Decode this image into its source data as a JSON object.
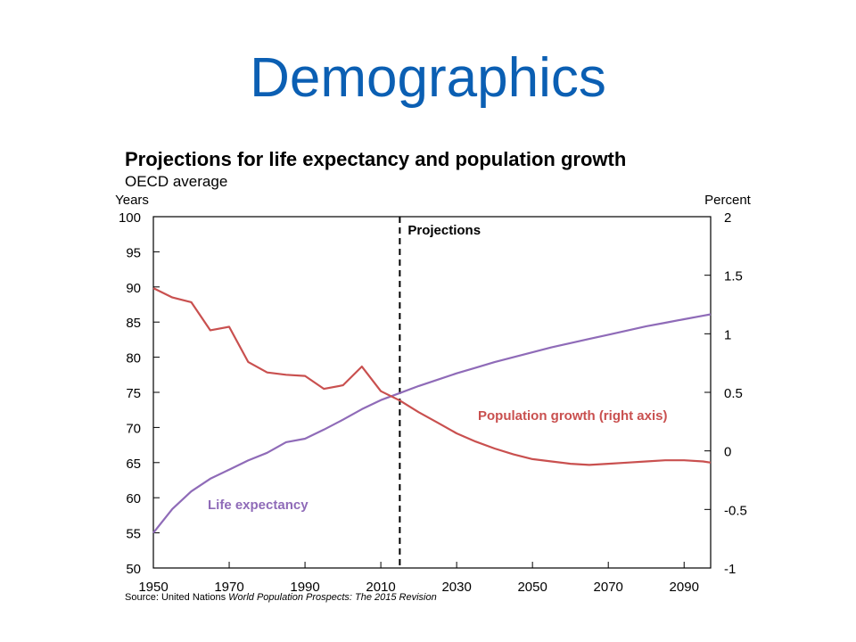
{
  "slide": {
    "title": "Demographics"
  },
  "chart_data": {
    "type": "line",
    "title": "Projections for life expectancy and population growth",
    "subtitle": "OECD average",
    "source_prefix": "Source: United Nations ",
    "source_title": "World Population Prospects: The 2015 Revision",
    "left_axis": {
      "unit_label": "Years",
      "ylim": [
        50,
        100
      ],
      "ticks": [
        "100",
        "95",
        "90",
        "85",
        "80",
        "75",
        "70",
        "65",
        "60",
        "55",
        "50"
      ]
    },
    "right_axis": {
      "unit_label": "Percent",
      "ylim": [
        -1,
        2
      ],
      "ticks": [
        "2",
        "1.5",
        "1",
        "0.5",
        "0",
        "-0.5",
        "-1"
      ]
    },
    "x_axis": {
      "xlim": [
        1950,
        2097
      ],
      "ticks": [
        "1950",
        "1970",
        "1990",
        "2010",
        "2030",
        "2050",
        "2070",
        "2090"
      ]
    },
    "projection_start": 2015,
    "projection_label": "Projections",
    "grid": false,
    "series": [
      {
        "name": "Life expectancy",
        "axis": "left",
        "color": "#8f6bb8",
        "x": [
          1950,
          1955,
          1960,
          1965,
          1970,
          1975,
          1980,
          1985,
          1990,
          1995,
          2000,
          2005,
          2010,
          2015,
          2020,
          2025,
          2030,
          2035,
          2040,
          2045,
          2050,
          2055,
          2060,
          2065,
          2070,
          2075,
          2080,
          2085,
          2090,
          2095,
          2097
        ],
        "values": [
          55.0,
          58.4,
          60.9,
          62.7,
          64.0,
          65.3,
          66.4,
          67.9,
          68.4,
          69.7,
          71.1,
          72.6,
          73.9,
          74.9,
          75.9,
          76.8,
          77.7,
          78.5,
          79.3,
          80.0,
          80.7,
          81.4,
          82.0,
          82.6,
          83.2,
          83.8,
          84.4,
          84.9,
          85.4,
          85.9,
          86.1
        ]
      },
      {
        "name": "Population growth (right axis)",
        "axis": "right",
        "color": "#c9504f",
        "x": [
          1950,
          1955,
          1960,
          1965,
          1970,
          1975,
          1980,
          1985,
          1990,
          1995,
          2000,
          2005,
          2010,
          2015,
          2020,
          2025,
          2030,
          2035,
          2040,
          2045,
          2050,
          2055,
          2060,
          2065,
          2070,
          2075,
          2080,
          2085,
          2090,
          2095,
          2097
        ],
        "values": [
          1.39,
          1.31,
          1.27,
          1.03,
          1.06,
          0.76,
          0.67,
          0.65,
          0.64,
          0.53,
          0.56,
          0.72,
          0.51,
          0.43,
          0.33,
          0.24,
          0.15,
          0.08,
          0.02,
          -0.03,
          -0.07,
          -0.09,
          -0.11,
          -0.12,
          -0.11,
          -0.1,
          -0.09,
          -0.08,
          -0.08,
          -0.09,
          -0.1
        ]
      }
    ],
    "annotations": [
      {
        "text": "Population growth (right axis)",
        "series": 1
      },
      {
        "text": "Life expectancy",
        "series": 0
      }
    ]
  }
}
